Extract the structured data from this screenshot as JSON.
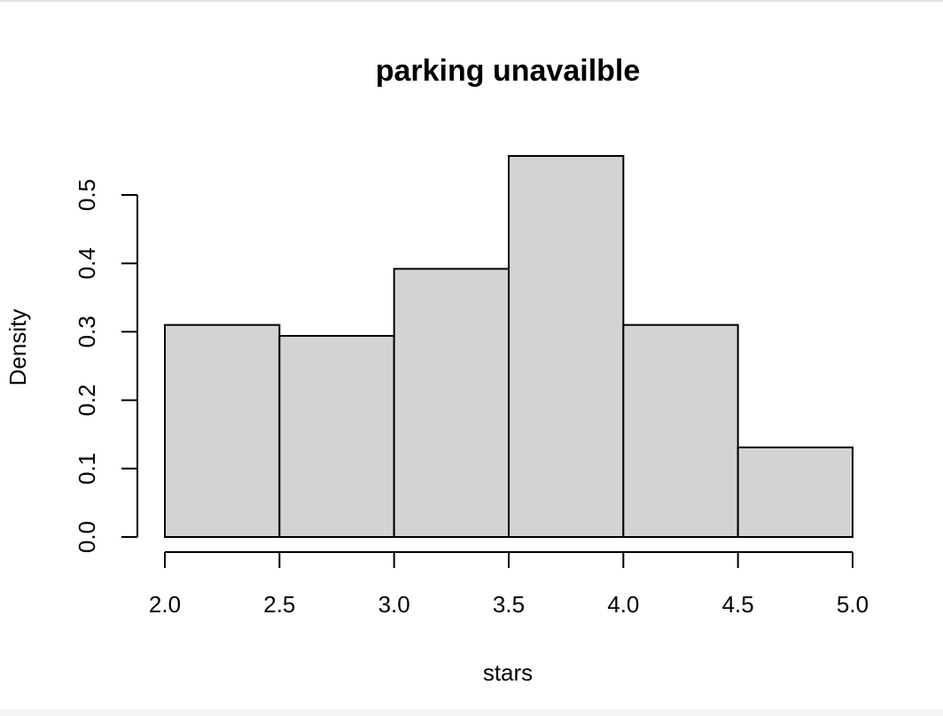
{
  "chart_data": {
    "type": "histogram",
    "title": "parking unavailble",
    "x_label": "stars",
    "y_label": "Density",
    "bins": [
      2.0,
      2.5,
      3.0,
      3.5,
      4.0,
      4.5,
      5.0
    ],
    "values": [
      0.31,
      0.294,
      0.392,
      0.557,
      0.31,
      0.131
    ],
    "color": "#d3d3d3",
    "xlim": [
      2.0,
      5.0
    ],
    "xticks": [
      {
        "value": 2,
        "label": "2.0"
      },
      2.5,
      {
        "value": 3,
        "label": "3.0"
      },
      3.5,
      {
        "value": 4,
        "label": "4.0"
      },
      4.5,
      {
        "value": 5,
        "label": "5.0"
      }
    ],
    "ylim": [
      0,
      0.58
    ],
    "yticks": [
      {
        "value": 0,
        "label": "0.0"
      },
      0.1,
      0.2,
      0.3,
      0.4,
      0.5
    ]
  }
}
